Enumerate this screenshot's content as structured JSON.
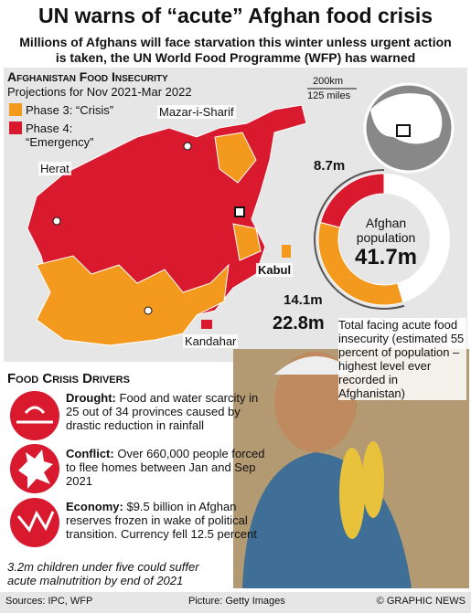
{
  "header": {
    "title": "UN warns of “acute” Afghan food crisis",
    "subtitle": "Millions of Afghans will face starvation this winter unless urgent action is taken, the UN World Food Programme (WFP) has warned"
  },
  "map": {
    "title": "Afghanistan Food Insecurity",
    "subtitle": "Projections for Nov 2021-Mar 2022",
    "legend": [
      {
        "label": "Phase 3: “Crisis”",
        "color": "#f39a1e"
      },
      {
        "label": "Phase 4: “Emergency”",
        "color": "#d9192e"
      }
    ],
    "scale": [
      "200km",
      "125 miles"
    ],
    "cities": [
      "Mazar-i-Sharif",
      "Herat",
      "Kabul",
      "Kandahar"
    ]
  },
  "donut": {
    "center_label": "Afghan population",
    "total": {
      "value": 41.7,
      "label": "41.7m"
    },
    "segments": [
      {
        "value": 8.7,
        "label": "8.7m",
        "color": "#d9192e"
      },
      {
        "value": 14.1,
        "label": "14.1m",
        "color": "#f39a1e"
      }
    ],
    "combined": {
      "value": 22.8,
      "label": "22.8m",
      "text": "Total facing acute food insecurity (estimated 55 percent of population – highest level ever recorded in Afghanistan)"
    }
  },
  "drivers": {
    "title": "Food Crisis Drivers",
    "items": [
      {
        "lead": "Drought:",
        "text": "Food and water scarcity in 25 out of 34 provinces caused by drastic reduction in rainfall"
      },
      {
        "lead": "Conflict:",
        "text": "Over 660,000 people forced to flee homes between Jan and Sep 2021"
      },
      {
        "lead": "Economy:",
        "text": "$9.5 billion in Afghan reserves frozen in wake of political transition. Currency fell 12.5 percent"
      }
    ],
    "footnote": "3.2m children under five could suffer acute malnutrition by end of 2021"
  },
  "footer": {
    "sources": "Sources: IPC, WFP",
    "picture": "Picture: Getty Images",
    "brand": "© GRAPHIC NEWS"
  }
}
